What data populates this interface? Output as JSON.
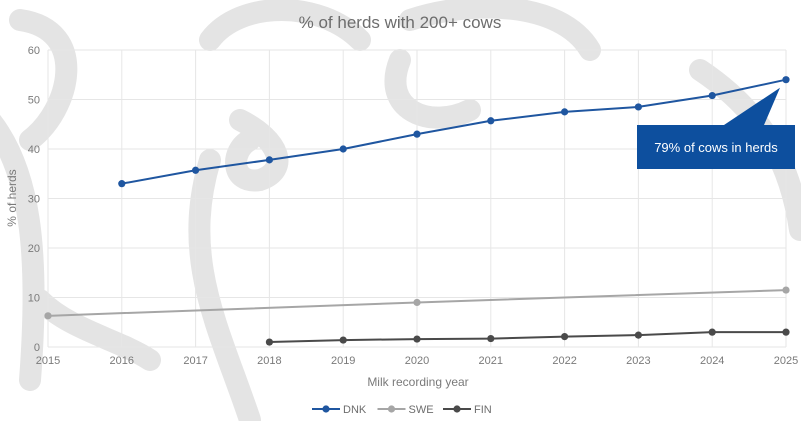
{
  "chart_data": {
    "type": "line",
    "title": "% of herds with 200+ cows",
    "xlabel": "Milk recording year",
    "ylabel": "% of herds",
    "xlim": [
      2015,
      2025
    ],
    "ylim": [
      0,
      60
    ],
    "x_ticks": [
      "2015",
      "2016",
      "2017",
      "2018",
      "2019",
      "2020",
      "2021",
      "2022",
      "2023",
      "2024",
      "2025"
    ],
    "y_ticks": [
      "0",
      "10",
      "20",
      "30",
      "40",
      "50",
      "60"
    ],
    "grid": true,
    "legend": "bottom",
    "series": [
      {
        "name": "DNK",
        "color": "#1f56a0",
        "x": [
          2016,
          2017,
          2018,
          2019,
          2020,
          2021,
          2022,
          2023,
          2024,
          2025
        ],
        "values": [
          33,
          35.7,
          37.8,
          40,
          43,
          45.7,
          47.5,
          48.5,
          50.8,
          54
        ],
        "markers": true
      },
      {
        "name": "SWE",
        "color": "#a6a6a6",
        "x": [
          2015,
          2020,
          2025
        ],
        "values": [
          6.3,
          9,
          11.5
        ],
        "markers": true
      },
      {
        "name": "FIN",
        "color": "#4a4a4a",
        "x": [
          2018,
          2019,
          2020,
          2021,
          2022,
          2023,
          2024,
          2025
        ],
        "values": [
          1,
          1.4,
          1.6,
          1.7,
          2.1,
          2.4,
          3,
          3
        ],
        "markers": true
      }
    ],
    "annotations": [
      {
        "text": "79% of cows in herds",
        "series": "DNK",
        "x": 2025,
        "color": "#0d4f9e"
      }
    ]
  }
}
